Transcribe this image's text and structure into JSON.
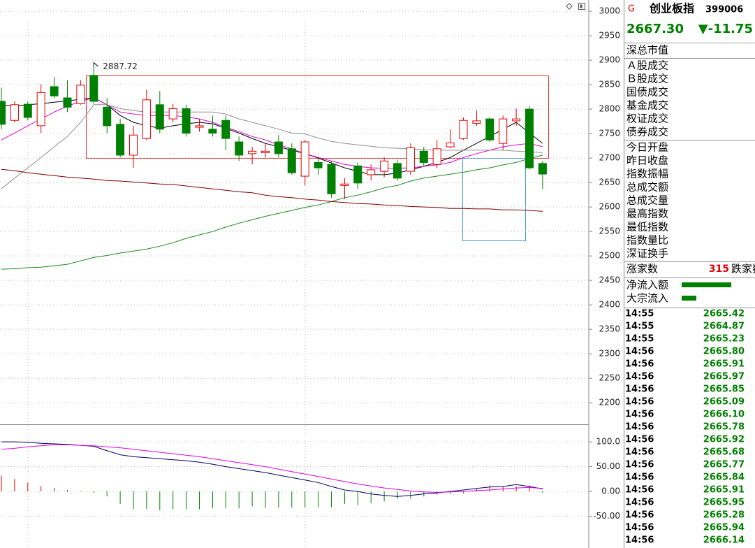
{
  "chart_data": [
    {
      "type": "candlestick",
      "categories": [
        null,
        null,
        null,
        null,
        null,
        null,
        null,
        null,
        null,
        null,
        null,
        null,
        null,
        null,
        null,
        null,
        null,
        null,
        null,
        null,
        null,
        null,
        null,
        null,
        null,
        null,
        null,
        null,
        null,
        null,
        null,
        null,
        null,
        null,
        null,
        null,
        null,
        null,
        null,
        null,
        null,
        null
      ],
      "open": [
        2816,
        2777,
        2810,
        2766,
        2846,
        2823,
        2811,
        2869,
        2804,
        2769,
        2706,
        2740,
        2809,
        2780,
        2801,
        2763,
        2759,
        2777,
        2733,
        2709,
        2711,
        2733,
        2719,
        2663,
        2691,
        2687,
        2644,
        2684,
        2666,
        2673,
        2689,
        2673,
        2714,
        2687,
        2723,
        2740,
        2771,
        2780,
        2730,
        2776,
        2800,
        2689
      ],
      "close": [
        2769,
        2809,
        2783,
        2834,
        2827,
        2804,
        2849,
        2816,
        2766,
        2706,
        2747,
        2819,
        2759,
        2801,
        2751,
        2766,
        2751,
        2740,
        2706,
        2714,
        2714,
        2709,
        2670,
        2733,
        2680,
        2627,
        2647,
        2649,
        2676,
        2694,
        2659,
        2721,
        2691,
        2719,
        2731,
        2777,
        2776,
        2737,
        2780,
        2780,
        2680,
        2667.3
      ],
      "high": [
        2844,
        2816,
        2816,
        2851,
        2866,
        2859,
        2859,
        2887.72,
        2823,
        2780,
        2766,
        2840,
        2837,
        2811,
        2809,
        2780,
        2787,
        2787,
        2744,
        2723,
        2730,
        2747,
        2730,
        2737,
        2701,
        2694,
        2659,
        2691,
        2687,
        2701,
        2697,
        2730,
        2723,
        2737,
        2759,
        2783,
        2797,
        2783,
        2787,
        2801,
        2806,
        2694
      ],
      "low": [
        2759,
        2773,
        2777,
        2751,
        2823,
        2794,
        2809,
        2811,
        2751,
        2701,
        2680,
        2737,
        2751,
        2773,
        2744,
        2754,
        2744,
        2716,
        2694,
        2687,
        2701,
        2701,
        2666,
        2644,
        2666,
        2619,
        2616,
        2637,
        2654,
        2661,
        2654,
        2666,
        2683,
        2680,
        2720,
        2737,
        2766,
        2733,
        2716,
        2766,
        2677,
        2637
      ],
      "up_color": "#e00000",
      "down_color": "#008000",
      "annotation": 2887.72,
      "lines": [
        {
          "color": "#000000",
          "values": [
            2809,
            2806,
            2809,
            2811,
            2814,
            2817,
            2820,
            2823,
            2809,
            2787,
            2773,
            2766,
            2761,
            2766,
            2770,
            2773,
            2770,
            2761,
            2751,
            2740,
            2730,
            2723,
            2716,
            2709,
            2700,
            2690,
            2680,
            2673,
            2666,
            2666,
            2669,
            2676,
            2683,
            2691,
            2701,
            2716,
            2730,
            2744,
            2759,
            2773,
            2751,
            2730
          ]
        },
        {
          "color": "#e000e0",
          "values": [
            2737,
            2751,
            2766,
            2780,
            2794,
            2806,
            2816,
            2823,
            2809,
            2794,
            2790,
            2787,
            2787,
            2787,
            2784,
            2780,
            2773,
            2763,
            2754,
            2744,
            2737,
            2727,
            2719,
            2709,
            2701,
            2694,
            2687,
            2683,
            2680,
            2679,
            2679,
            2680,
            2683,
            2686,
            2691,
            2701,
            2709,
            2716,
            2723,
            2727,
            2730,
            2723
          ]
        },
        {
          "color": "#909090",
          "values": [
            2637,
            2659,
            2680,
            2701,
            2723,
            2744,
            2773,
            2809,
            2809,
            2801,
            2797,
            2794,
            2794,
            2794,
            2794,
            2794,
            2794,
            2790,
            2780,
            2773,
            2766,
            2759,
            2751,
            2749,
            2741,
            2734,
            2730,
            2727,
            2724,
            2721,
            2720,
            2719,
            2717,
            2716,
            2716,
            2716,
            2716,
            2716,
            2716,
            2714,
            2713,
            2711
          ]
        },
        {
          "color": "#1a8a1a",
          "values": [
            2473,
            2474,
            2476,
            2477,
            2480,
            2483,
            2490,
            2497,
            2501,
            2506,
            2510,
            2514,
            2520,
            2527,
            2536,
            2543,
            2550,
            2559,
            2567,
            2574,
            2581,
            2587,
            2593,
            2599,
            2604,
            2611,
            2619,
            2624,
            2631,
            2639,
            2644,
            2653,
            2659,
            2663,
            2667,
            2671,
            2676,
            2680,
            2686,
            2691,
            2699,
            2706
          ]
        },
        {
          "color": "#800000",
          "values": [
            2677,
            2674,
            2670,
            2667,
            2664,
            2661,
            2659,
            2657,
            2654,
            2653,
            2651,
            2649,
            2647,
            2646,
            2643,
            2640,
            2637,
            2634,
            2631,
            2629,
            2624,
            2621,
            2619,
            2616,
            2614,
            2611,
            2609,
            2607,
            2606,
            2604,
            2603,
            2601,
            2600,
            2599,
            2597,
            2597,
            2596,
            2596,
            2594,
            2594,
            2593,
            2591
          ]
        }
      ],
      "ylim": [
        2156,
        3023
      ],
      "yticks": [
        3000,
        2950,
        2900,
        2850,
        2800,
        2750,
        2700,
        2650,
        2600,
        2550,
        2500,
        2450,
        2400,
        2350,
        2300,
        2250,
        2200
      ],
      "grid": true
    },
    {
      "type": "macd",
      "categories": [
        null,
        null,
        null,
        null,
        null,
        null,
        null,
        null,
        null,
        null,
        null,
        null,
        null,
        null,
        null,
        null,
        null,
        null,
        null,
        null,
        null,
        null,
        null,
        null,
        null,
        null,
        null,
        null,
        null,
        null,
        null,
        null,
        null,
        null,
        null,
        null,
        null,
        null,
        null,
        null,
        null,
        null
      ],
      "histogram": [
        32,
        25,
        18,
        11,
        7,
        3,
        1,
        -3,
        -10,
        -25,
        -35,
        -35,
        -38,
        -36,
        -36,
        -36,
        -34,
        -34,
        -34,
        -30,
        -33,
        -33,
        -32,
        -32,
        -32,
        -32,
        -25,
        -28,
        -24,
        -20,
        -15,
        -15,
        -10,
        -6,
        -5,
        -4,
        5,
        12,
        10,
        10,
        12,
        -3
      ],
      "up_color": "#e00000",
      "down_color": "#008000",
      "lines": [
        {
          "color": "#000060",
          "values": [
            100,
            100,
            99,
            97,
            96,
            95,
            93,
            91,
            82,
            74,
            70,
            68,
            66,
            64,
            62,
            59,
            55,
            50,
            46,
            42,
            38,
            33,
            28,
            23,
            18,
            10,
            3,
            0,
            -5,
            -8,
            -10,
            -8,
            -5,
            -3,
            0,
            3,
            6,
            9,
            10,
            14,
            10,
            5
          ]
        },
        {
          "color": "#e000e0",
          "values": [
            85,
            87,
            90,
            92,
            94,
            94,
            93,
            92,
            90,
            88,
            85,
            82,
            79,
            76,
            73,
            70,
            66,
            62,
            58,
            54,
            50,
            45,
            40,
            35,
            30,
            25,
            20,
            15,
            11,
            7,
            4,
            1,
            -1,
            -2,
            -1,
            0,
            2,
            3,
            5,
            7,
            8,
            6
          ]
        }
      ],
      "ylim": [
        -114,
        134
      ],
      "yticks": [
        {
          "value": 100,
          "label": "100.0"
        },
        {
          "value": 50,
          "label": "50.00"
        },
        {
          "value": 0,
          "label": "0.00"
        },
        {
          "value": -50,
          "label": "-50.00"
        }
      ],
      "grid": true
    }
  ],
  "panel": {
    "code_mark": "G",
    "name": "创业板指",
    "code": "399006",
    "price": "2667.30",
    "change": "▼-11.75",
    "sections": [
      [
        "深总市值"
      ],
      [
        "Ａ股成交",
        "Ｂ股成交",
        "国债成交",
        "基金成交",
        "权证成交",
        "债券成交"
      ],
      [
        "今日开盘",
        "昨日收盘",
        "指数振幅",
        "总成交额",
        "总成交量",
        "最高指数",
        "最低指数",
        "指数量比",
        "深证换手"
      ]
    ],
    "up_label": "涨家数",
    "up_count": 315,
    "down_label": "跌家数",
    "flow_labels": [
      "净流入额",
      "大宗流入"
    ],
    "ticks": [
      {
        "time": "14:55",
        "price": "2665.42"
      },
      {
        "time": "14:55",
        "price": "2664.87"
      },
      {
        "time": "14:55",
        "price": "2665.23"
      },
      {
        "time": "14:56",
        "price": "2665.80"
      },
      {
        "time": "14:56",
        "price": "2665.91"
      },
      {
        "time": "14:56",
        "price": "2665.97"
      },
      {
        "time": "14:56",
        "price": "2665.85"
      },
      {
        "time": "14:56",
        "price": "2665.09"
      },
      {
        "time": "14:56",
        "price": "2666.10"
      },
      {
        "time": "14:56",
        "price": "2665.78"
      },
      {
        "time": "14:56",
        "price": "2665.92"
      },
      {
        "time": "14:56",
        "price": "2665.68"
      },
      {
        "time": "14:56",
        "price": "2665.77"
      },
      {
        "time": "14:56",
        "price": "2665.84"
      },
      {
        "time": "14:56",
        "price": "2665.91"
      },
      {
        "time": "14:56",
        "price": "2665.95"
      },
      {
        "time": "14:56",
        "price": "2665.28"
      },
      {
        "time": "14:56",
        "price": "2665.94"
      },
      {
        "time": "14:56",
        "price": "2666.14"
      }
    ]
  }
}
